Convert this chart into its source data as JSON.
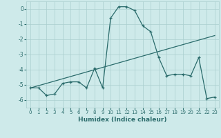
{
  "xlabel": "Humidex (Indice chaleur)",
  "x_values": [
    0,
    1,
    2,
    3,
    4,
    5,
    6,
    7,
    8,
    9,
    10,
    11,
    12,
    13,
    14,
    15,
    16,
    17,
    18,
    19,
    20,
    21,
    22,
    23
  ],
  "y_main": [
    -5.2,
    -5.2,
    -5.7,
    -5.6,
    -4.9,
    -4.8,
    -4.8,
    -5.2,
    -3.9,
    -5.2,
    -0.6,
    0.15,
    0.15,
    -0.1,
    -1.1,
    -1.5,
    -3.2,
    -4.4,
    -4.3,
    -4.3,
    -4.4,
    -3.2,
    -5.9,
    -5.8
  ],
  "y_trend": [
    -5.2,
    -5.05,
    -4.9,
    -4.75,
    -4.6,
    -4.45,
    -4.3,
    -4.15,
    -4.0,
    -3.85,
    -3.7,
    -3.55,
    -3.4,
    -3.25,
    -3.1,
    -2.95,
    -2.8,
    -2.65,
    -2.5,
    -2.35,
    -2.2,
    -2.05,
    -1.9,
    -1.75
  ],
  "line_color": "#2a6b6b",
  "bg_color": "#ceeaea",
  "grid_color": "#aacece",
  "ylim": [
    -6.5,
    0.5
  ],
  "xlim": [
    -0.5,
    23.5
  ],
  "yticks": [
    0,
    -1,
    -2,
    -3,
    -4,
    -5,
    -6
  ],
  "xticks": [
    0,
    1,
    2,
    3,
    4,
    5,
    6,
    7,
    8,
    9,
    10,
    11,
    12,
    13,
    14,
    15,
    16,
    17,
    18,
    19,
    20,
    21,
    22,
    23
  ]
}
